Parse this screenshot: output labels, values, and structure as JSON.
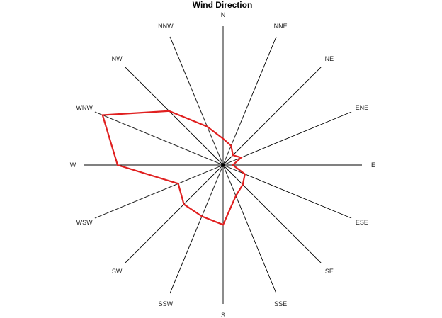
{
  "chart_data": {
    "type": "radar",
    "title": "Wind Direction",
    "directions": [
      "N",
      "NNE",
      "NE",
      "ENE",
      "E",
      "ESE",
      "SE",
      "SSE",
      "S",
      "SSW",
      "SW",
      "WSW",
      "W",
      "WNW",
      "NW",
      "NNW"
    ],
    "values": [
      0.19,
      0.15,
      0.1,
      0.14,
      0.07,
      0.17,
      0.2,
      0.24,
      0.43,
      0.4,
      0.4,
      0.35,
      0.76,
      0.94,
      0.55,
      0.3
    ],
    "rmax": 1,
    "grid": false,
    "legend": false
  },
  "colors": {
    "series": "#e02020",
    "spokes": "#000000",
    "background": "#ffffff"
  }
}
